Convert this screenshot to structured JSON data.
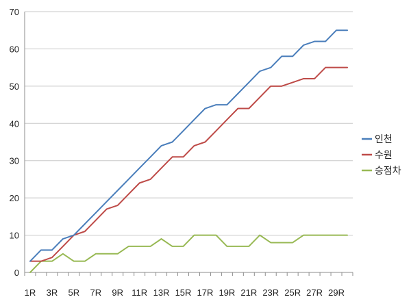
{
  "chart_data": {
    "type": "line",
    "title": "",
    "xlabel": "",
    "ylabel": "",
    "ylim": [
      0,
      70
    ],
    "yticks": [
      0,
      10,
      20,
      30,
      40,
      50,
      60,
      70
    ],
    "grid": true,
    "legend_position": "right",
    "categories": [
      "1R",
      "2R",
      "3R",
      "4R",
      "5R",
      "6R",
      "7R",
      "8R",
      "9R",
      "10R",
      "11R",
      "12R",
      "13R",
      "14R",
      "15R",
      "16R",
      "17R",
      "18R",
      "19R",
      "20R",
      "21R",
      "22R",
      "23R",
      "24R",
      "25R",
      "26R",
      "27R",
      "28R",
      "29R",
      "30R"
    ],
    "tick_labels": [
      "1R",
      "3R",
      "5R",
      "7R",
      "9R",
      "11R",
      "13R",
      "15R",
      "17R",
      "19R",
      "21R",
      "23R",
      "25R",
      "27R",
      "29R"
    ],
    "series": [
      {
        "name": "인천",
        "color": "#4a7ebb",
        "values": [
          3,
          6,
          6,
          9,
          10,
          13,
          16,
          19,
          22,
          25,
          28,
          31,
          34,
          35,
          38,
          41,
          44,
          45,
          45,
          48,
          51,
          54,
          55,
          58,
          58,
          61,
          62,
          62,
          65,
          65
        ]
      },
      {
        "name": "수원",
        "color": "#be4b48",
        "values": [
          3,
          3,
          4,
          7,
          10,
          11,
          14,
          17,
          18,
          21,
          24,
          25,
          28,
          31,
          31,
          34,
          35,
          38,
          41,
          44,
          44,
          47,
          50,
          50,
          51,
          52,
          52,
          55,
          55,
          55
        ]
      },
      {
        "name": "승점차",
        "color": "#98b954",
        "values": [
          0,
          3,
          3,
          5,
          3,
          3,
          5,
          5,
          5,
          7,
          7,
          7,
          9,
          7,
          7,
          10,
          10,
          10,
          7,
          7,
          7,
          10,
          8,
          8,
          8,
          10,
          10,
          10,
          10,
          10
        ]
      }
    ]
  }
}
